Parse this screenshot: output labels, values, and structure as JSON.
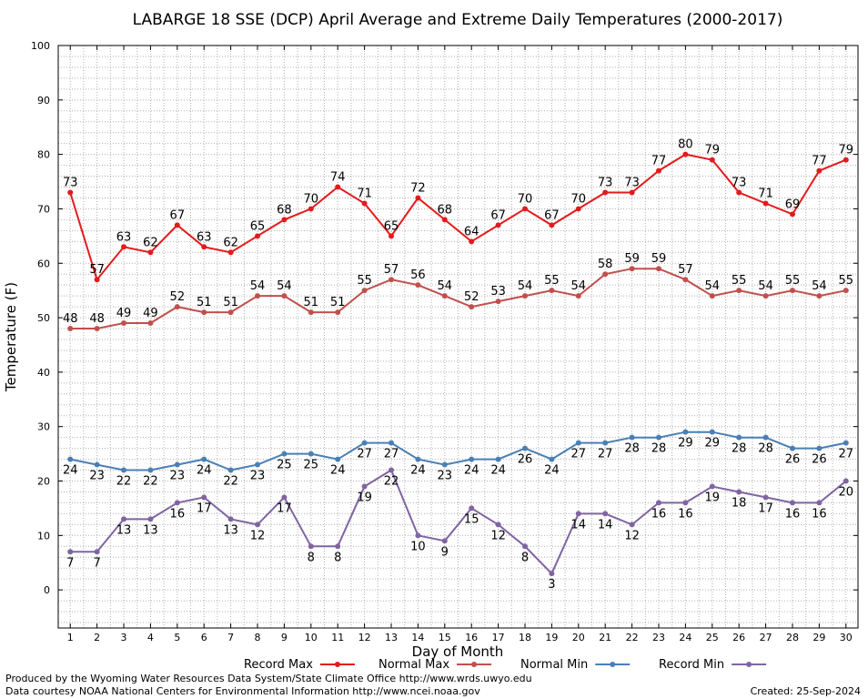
{
  "chart_data": {
    "type": "line",
    "title": "LABARGE 18 SSE (DCP) April Average and Extreme Daily Temperatures (2000-2017)",
    "xlabel": "Day of Month",
    "ylabel": "Temperature (F)",
    "ylim": [
      -7,
      100
    ],
    "yticks": [
      0,
      10,
      20,
      30,
      40,
      50,
      60,
      70,
      80,
      90,
      100
    ],
    "x": [
      1,
      2,
      3,
      4,
      5,
      6,
      7,
      8,
      9,
      10,
      11,
      12,
      13,
      14,
      15,
      16,
      17,
      18,
      19,
      20,
      21,
      22,
      23,
      24,
      25,
      26,
      27,
      28,
      29,
      30
    ],
    "grid": true,
    "legend_placement": "bottom",
    "series": [
      {
        "name": "Record Max",
        "color": "#e41a1c",
        "values": [
          73,
          57,
          63,
          62,
          67,
          63,
          62,
          65,
          68,
          70,
          74,
          71,
          65,
          72,
          68,
          64,
          67,
          70,
          67,
          70,
          73,
          73,
          77,
          80,
          79,
          73,
          71,
          69,
          77,
          79
        ]
      },
      {
        "name": "Normal Max",
        "color": "#c0504d",
        "values": [
          48,
          48,
          49,
          49,
          52,
          51,
          51,
          54,
          54,
          51,
          51,
          55,
          57,
          56,
          54,
          52,
          53,
          54,
          55,
          54,
          58,
          59,
          59,
          57,
          54,
          55,
          54,
          55,
          54,
          55
        ]
      },
      {
        "name": "Normal Min",
        "color": "#4a7fb5",
        "values": [
          24,
          23,
          22,
          22,
          23,
          24,
          22,
          23,
          25,
          25,
          24,
          27,
          27,
          24,
          23,
          24,
          24,
          26,
          24,
          27,
          27,
          28,
          28,
          29,
          29,
          28,
          28,
          26,
          26,
          27
        ]
      },
      {
        "name": "Record Min",
        "color": "#8064a2",
        "values": [
          7,
          7,
          13,
          13,
          16,
          17,
          13,
          12,
          17,
          8,
          8,
          19,
          22,
          10,
          9,
          15,
          12,
          8,
          3,
          14,
          14,
          12,
          16,
          16,
          19,
          18,
          17,
          16,
          16,
          20
        ]
      }
    ]
  },
  "footer": {
    "produced_by": "Produced by the Wyoming Water Resources Data System/State Climate Office http://www.wrds.uwyo.edu",
    "data_courtesy": "Data courtesy NOAA National Centers for Environmental Information http://www.ncei.noaa.gov",
    "created": "Created:  25-Sep-2024"
  }
}
